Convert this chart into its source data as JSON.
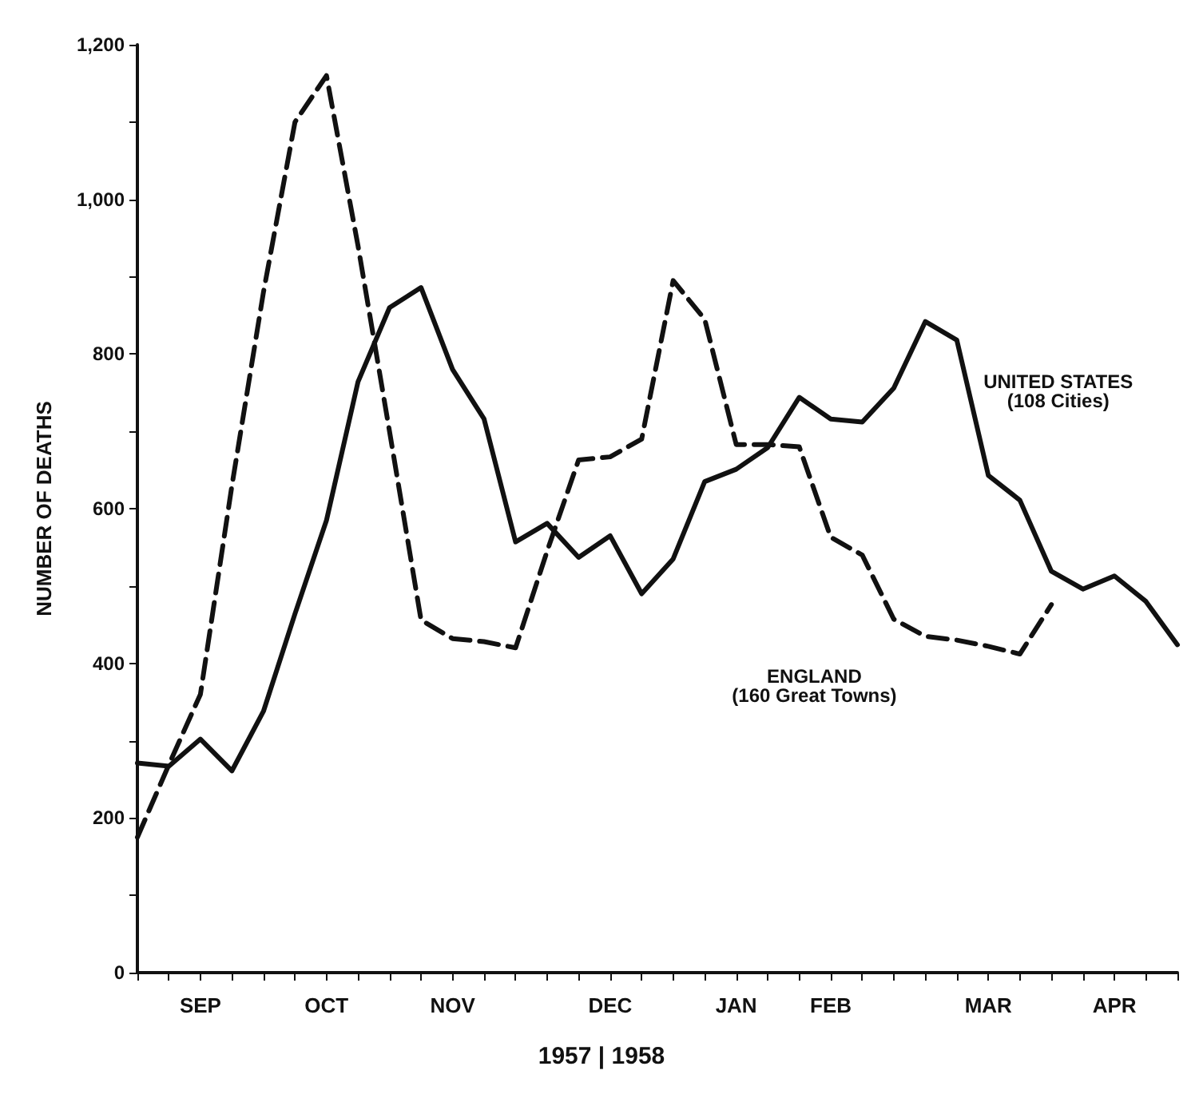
{
  "chart_data": {
    "type": "line",
    "ylabel": "NUMBER OF DEATHS",
    "categories": [
      null,
      null,
      "SEP",
      null,
      null,
      null,
      "OCT",
      null,
      null,
      null,
      "NOV",
      null,
      null,
      null,
      null,
      "DEC",
      null,
      null,
      null,
      "JAN",
      null,
      null,
      "FEB",
      null,
      null,
      null,
      null,
      "MAR",
      null,
      null,
      null,
      "APR",
      null,
      null
    ],
    "series": [
      {
        "name": "UNITED STATES\n(108 Cities)",
        "color": "#111111",
        "line_style": "solid",
        "values": [
          271,
          267,
          302,
          261,
          338,
          464,
          585,
          764,
          860,
          886,
          780,
          716,
          557,
          581,
          537,
          565,
          490,
          535,
          635,
          651,
          679,
          744,
          716,
          712,
          756,
          842,
          818,
          643,
          611,
          519,
          496,
          513,
          480,
          424
        ]
      },
      {
        "name": "ENGLAND\n(160 Great Towns)",
        "color": "#111111",
        "line_style": "dashed",
        "values": [
          175,
          269,
          360,
          630,
          880,
          1100,
          1160,
          940,
          700,
          456,
          432,
          428,
          420,
          545,
          663,
          667,
          690,
          895,
          845,
          683,
          683,
          680,
          563,
          540,
          457,
          435,
          430,
          422,
          412,
          476,
          null,
          null,
          null,
          null
        ]
      }
    ],
    "ylim": [
      0,
      1200
    ],
    "yticks": [
      0,
      {
        "value": 100,
        "label": null
      },
      200,
      {
        "value": 300,
        "label": null
      },
      400,
      {
        "value": 500,
        "label": null
      },
      600,
      {
        "value": 700,
        "label": null
      },
      800,
      {
        "value": 900,
        "label": null
      },
      {
        "value": 1000,
        "label": "1,000"
      },
      {
        "value": 1100,
        "label": null
      },
      {
        "value": 1200,
        "label": "1,200"
      }
    ],
    "grid": false,
    "legend": false,
    "marker": "none",
    "annotations": [
      "1957 | 1958"
    ]
  }
}
